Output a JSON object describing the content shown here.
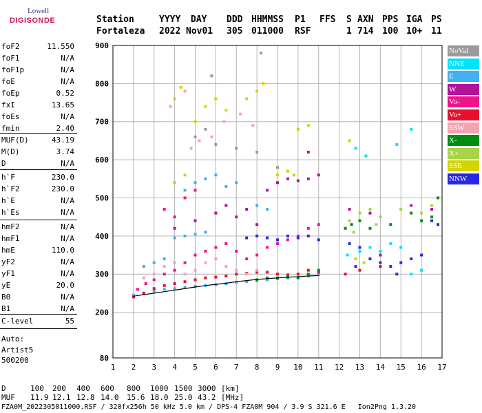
{
  "logo": {
    "line1": "Lowell",
    "line2": "DIGISONDE"
  },
  "header": {
    "labels": [
      "Station",
      "YYYY",
      "DAY",
      "DDD",
      "HHMMSS",
      "P1",
      "FFS",
      "S",
      "AXN",
      "PPS",
      "IGA",
      "PS"
    ],
    "values": [
      "Fortaleza",
      "2022",
      "Nov01",
      "305",
      "011000",
      "RSF",
      "1",
      "714",
      "100",
      "10+",
      "11"
    ]
  },
  "params": [
    {
      "name": "foF2",
      "value": "11.550"
    },
    {
      "name": "foF1",
      "value": "N/A"
    },
    {
      "name": "foF1p",
      "value": "N/A"
    },
    {
      "name": "foE",
      "value": "N/A"
    },
    {
      "name": "foEp",
      "value": "0.52"
    },
    {
      "name": "fxI",
      "value": "13.65"
    },
    {
      "name": "foEs",
      "value": "N/A"
    },
    {
      "name": "fmin",
      "value": "2.40"
    },
    {
      "name": "MUF(D)",
      "value": "43.19"
    },
    {
      "name": "M(D)",
      "value": "3.74"
    },
    {
      "name": "D",
      "value": "N/A"
    },
    {
      "name": "h`F",
      "value": "230.0"
    },
    {
      "name": "h`F2",
      "value": "230.0"
    },
    {
      "name": "h`E",
      "value": "N/A"
    },
    {
      "name": "h`Es",
      "value": "N/A"
    },
    {
      "name": "hmF2",
      "value": "N/A"
    },
    {
      "name": "hmF1",
      "value": "N/A"
    },
    {
      "name": "hmE",
      "value": "110.0"
    },
    {
      "name": "yF2",
      "value": "N/A"
    },
    {
      "name": "yF1",
      "value": "N/A"
    },
    {
      "name": "yE",
      "value": "20.0"
    },
    {
      "name": "B0",
      "value": "N/A"
    },
    {
      "name": "B1",
      "value": "N/A"
    },
    {
      "name": "C-level",
      "value": "55"
    }
  ],
  "autoscale": {
    "line1": "Auto:",
    "line2": "Artist5",
    "line3": "500200"
  },
  "legend": [
    {
      "label": "NoVal",
      "color": "#9a9a9a"
    },
    {
      "label": "NNE",
      "color": "#00e4f8"
    },
    {
      "label": "E",
      "color": "#40b0f0"
    },
    {
      "label": "W",
      "color": "#b0149c"
    },
    {
      "label": "Vo-",
      "color": "#f0148c"
    },
    {
      "label": "Vo+",
      "color": "#e8102c"
    },
    {
      "label": "SSW",
      "color": "#f4a4b0"
    },
    {
      "label": "X-",
      "color": "#008c10"
    },
    {
      "label": "X+",
      "color": "#a8d44c"
    },
    {
      "label": "SSE",
      "color": "#d4d400"
    },
    {
      "label": "NNW",
      "color": "#2828e4"
    }
  ],
  "chart_data": {
    "type": "scatter",
    "xlim": [
      1,
      17
    ],
    "ylim": [
      80,
      900
    ],
    "xticks": [
      1,
      2,
      3,
      4,
      5,
      6,
      7,
      8,
      9,
      10,
      11,
      12,
      13,
      14,
      15,
      16,
      17
    ],
    "yticks": [
      80,
      200,
      300,
      400,
      500,
      600,
      700,
      800,
      900
    ],
    "grid": true,
    "series": [
      {
        "name": "E",
        "points": [
          [
            2.0,
            245
          ],
          [
            2.5,
            250
          ],
          [
            3,
            255
          ],
          [
            3.5,
            260
          ],
          [
            4,
            262
          ],
          [
            4.5,
            265
          ],
          [
            5,
            268
          ],
          [
            5.5,
            270
          ],
          [
            6,
            272
          ],
          [
            6.5,
            275
          ],
          [
            7,
            278
          ],
          [
            7.5,
            280
          ],
          [
            8,
            283
          ],
          [
            8.5,
            285
          ],
          [
            9,
            288
          ],
          [
            9.5,
            290
          ],
          [
            10,
            292
          ],
          [
            10.5,
            295
          ],
          [
            11,
            298
          ],
          [
            2.5,
            320
          ],
          [
            3,
            330
          ],
          [
            3.5,
            340
          ],
          [
            4,
            395
          ],
          [
            4.5,
            400
          ],
          [
            5,
            405
          ],
          [
            5.5,
            410
          ],
          [
            6,
            560
          ],
          [
            6.5,
            530
          ],
          [
            7,
            540
          ],
          [
            8,
            480
          ],
          [
            8.5,
            470
          ],
          [
            5,
            540
          ],
          [
            5.5,
            550
          ],
          [
            4.5,
            520
          ]
        ]
      },
      {
        "name": "Vo-",
        "points": [
          [
            2.2,
            260
          ],
          [
            2.6,
            275
          ],
          [
            3,
            285
          ],
          [
            3.5,
            300
          ],
          [
            4,
            310
          ],
          [
            4.5,
            330
          ],
          [
            5,
            350
          ],
          [
            5.5,
            360
          ],
          [
            6,
            370
          ],
          [
            6.5,
            380
          ],
          [
            7,
            360
          ],
          [
            7.5,
            340
          ],
          [
            8,
            350
          ],
          [
            8.5,
            370
          ],
          [
            9,
            380
          ],
          [
            9.5,
            390
          ],
          [
            10,
            400
          ],
          [
            10.5,
            420
          ],
          [
            11,
            430
          ],
          [
            4,
            450
          ],
          [
            4.5,
            500
          ],
          [
            5,
            520
          ],
          [
            3.5,
            470
          ]
        ]
      },
      {
        "name": "Vo+",
        "points": [
          [
            2.0,
            240
          ],
          [
            2.5,
            250
          ],
          [
            3,
            262
          ],
          [
            3.5,
            270
          ],
          [
            4,
            275
          ],
          [
            4.5,
            280
          ],
          [
            5,
            285
          ],
          [
            5.5,
            290
          ],
          [
            6,
            292
          ],
          [
            6.5,
            295
          ],
          [
            7,
            300
          ],
          [
            7.5,
            302
          ],
          [
            8,
            305
          ],
          [
            8.5,
            305
          ],
          [
            9,
            300
          ],
          [
            9.5,
            298
          ],
          [
            10,
            300
          ],
          [
            10.5,
            310
          ],
          [
            11,
            305
          ],
          [
            12.3,
            300
          ],
          [
            13,
            310
          ],
          [
            14,
            320
          ]
        ]
      },
      {
        "name": "W",
        "points": [
          [
            4,
            420
          ],
          [
            5,
            440
          ],
          [
            6,
            460
          ],
          [
            7,
            450
          ],
          [
            8,
            430
          ],
          [
            9,
            540
          ],
          [
            9.5,
            550
          ],
          [
            10,
            545
          ],
          [
            10.5,
            550
          ],
          [
            11,
            560
          ],
          [
            8.5,
            520
          ],
          [
            7.5,
            470
          ],
          [
            6.5,
            480
          ],
          [
            12.5,
            470
          ],
          [
            13.5,
            460
          ],
          [
            15.5,
            480
          ],
          [
            16.5,
            470
          ],
          [
            10.5,
            620
          ],
          [
            13,
            360
          ],
          [
            14,
            350
          ]
        ]
      },
      {
        "name": "NNW",
        "points": [
          [
            7.5,
            395
          ],
          [
            8,
            400
          ],
          [
            8.5,
            395
          ],
          [
            9,
            390
          ],
          [
            9.5,
            400
          ],
          [
            10,
            395
          ],
          [
            10.5,
            400
          ],
          [
            11,
            390
          ],
          [
            12.5,
            380
          ],
          [
            13,
            370
          ],
          [
            13.5,
            340
          ],
          [
            14,
            330
          ],
          [
            14.5,
            320
          ],
          [
            15,
            330
          ],
          [
            15.5,
            340
          ],
          [
            16,
            350
          ],
          [
            16.5,
            440
          ],
          [
            16.8,
            430
          ],
          [
            12.8,
            320
          ],
          [
            14.8,
            300
          ]
        ]
      },
      {
        "name": "SSE",
        "points": [
          [
            4,
            540
          ],
          [
            4.5,
            560
          ],
          [
            4,
            760
          ],
          [
            4.3,
            790
          ],
          [
            5,
            700
          ],
          [
            5.5,
            740
          ],
          [
            6,
            760
          ],
          [
            6.5,
            730
          ],
          [
            7.5,
            760
          ],
          [
            8,
            780
          ],
          [
            8.3,
            800
          ],
          [
            9,
            560
          ],
          [
            9.5,
            570
          ],
          [
            10,
            680
          ],
          [
            10.5,
            690
          ],
          [
            12.5,
            650
          ],
          [
            12.8,
            340
          ],
          [
            13.2,
            330
          ],
          [
            9.8,
            560
          ]
        ]
      },
      {
        "name": "X-",
        "points": [
          [
            8,
            285
          ],
          [
            8.5,
            290
          ],
          [
            9,
            290
          ],
          [
            9.5,
            292
          ],
          [
            10,
            290
          ],
          [
            10.5,
            300
          ],
          [
            11,
            310
          ],
          [
            12.3,
            420
          ],
          [
            12.6,
            430
          ],
          [
            13,
            440
          ],
          [
            13.5,
            420
          ],
          [
            14.5,
            430
          ],
          [
            15.5,
            460
          ],
          [
            16,
            440
          ],
          [
            16.5,
            450
          ],
          [
            16.8,
            500
          ]
        ]
      },
      {
        "name": "X+",
        "points": [
          [
            12.5,
            440
          ],
          [
            13,
            460
          ],
          [
            13.5,
            470
          ],
          [
            14,
            450
          ],
          [
            15,
            470
          ],
          [
            16,
            460
          ],
          [
            16.5,
            480
          ],
          [
            12.7,
            410
          ],
          [
            13.8,
            430
          ]
        ]
      },
      {
        "name": "NNE",
        "points": [
          [
            12.4,
            350
          ],
          [
            13,
            360
          ],
          [
            13.5,
            370
          ],
          [
            14,
            360
          ],
          [
            14.5,
            380
          ],
          [
            15,
            370
          ],
          [
            15.5,
            300
          ],
          [
            16,
            310
          ],
          [
            12.8,
            630
          ],
          [
            13.3,
            610
          ],
          [
            14.8,
            640
          ],
          [
            15.5,
            680
          ]
        ]
      },
      {
        "name": "SSW",
        "points": [
          [
            2.5,
            290
          ],
          [
            3,
            300
          ],
          [
            3.5,
            320
          ],
          [
            4,
            330
          ],
          [
            4.5,
            300
          ],
          [
            5,
            310
          ],
          [
            5.5,
            330
          ],
          [
            6,
            340
          ],
          [
            6.5,
            320
          ],
          [
            7,
            310
          ],
          [
            7.5,
            300
          ],
          [
            8,
            310
          ],
          [
            4.8,
            630
          ],
          [
            5.2,
            650
          ],
          [
            5.8,
            660
          ],
          [
            6.4,
            700
          ],
          [
            7.2,
            720
          ],
          [
            7.8,
            690
          ],
          [
            3.8,
            740
          ],
          [
            4.5,
            780
          ]
        ]
      },
      {
        "name": "NoVal",
        "points": [
          [
            5,
            660
          ],
          [
            5.5,
            680
          ],
          [
            6,
            640
          ],
          [
            7,
            630
          ],
          [
            8,
            620
          ],
          [
            9,
            580
          ],
          [
            8.2,
            880
          ],
          [
            5.8,
            820
          ]
        ]
      }
    ],
    "trace": [
      [
        2.0,
        242
      ],
      [
        2.5,
        246
      ],
      [
        3.0,
        250
      ],
      [
        3.5,
        254
      ],
      [
        4.0,
        258
      ],
      [
        4.5,
        262
      ],
      [
        5.0,
        266
      ],
      [
        5.5,
        270
      ],
      [
        6.0,
        273
      ],
      [
        6.5,
        276
      ],
      [
        7.0,
        280
      ],
      [
        7.5,
        283
      ],
      [
        8.0,
        286
      ],
      [
        8.5,
        288
      ],
      [
        9.0,
        290
      ],
      [
        9.5,
        292
      ],
      [
        10.0,
        293
      ],
      [
        10.5,
        295
      ],
      [
        11.0,
        296
      ]
    ],
    "bottom_scale": {
      "d_label": "D",
      "d_values": [
        "100",
        "200",
        "400",
        "600",
        "800",
        "1000",
        "1500",
        "3000",
        "[km]"
      ],
      "muf_label": "MUF",
      "muf_values": [
        "11.9",
        "12.1",
        "12.8",
        "14.0",
        "15.6",
        "18.0",
        "25.0",
        "43.2",
        "[MHz]"
      ]
    }
  },
  "footer": "FZA0M_2022305011000.RSF / 320fx256h 50 kHz 5.0 km / DPS-4 FZA0M 904 / 3.9 S 321.6 E   Ion2Png 1.3.20"
}
